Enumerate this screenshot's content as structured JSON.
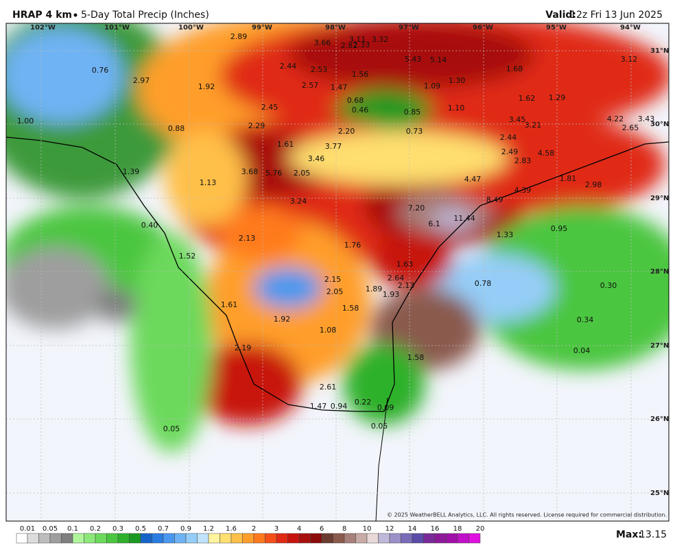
{
  "header": {
    "title": "HRAP 4 km",
    "subtitle": "5-Day Total Precip (Inches)",
    "valid_label": "Valid:",
    "valid_time": "12z Fri 13 Jun 2025"
  },
  "map": {
    "longitudes": [
      "102°W",
      "101°W",
      "100°W",
      "99°W",
      "98°W",
      "97°W",
      "96°W",
      "95°W",
      "94°W"
    ],
    "latitudes": [
      "31°N",
      "30°N",
      "29°N",
      "28°N",
      "27°N",
      "26°N",
      "25°N"
    ],
    "labels": [
      "2.89",
      "3.66",
      "2.82",
      "3.11",
      "2.33",
      "3.32",
      "0.76",
      "2.97",
      "1.92",
      "2.44",
      "2.53",
      "2.57",
      "1.47",
      "1.56",
      "5.43",
      "5.14",
      "1.68",
      "3.12",
      "1.09",
      "1.30",
      "1.62",
      "1.29",
      "0.68",
      "0.46",
      "0.85",
      "1.10",
      "2.45",
      "1.00",
      "0.88",
      "2.29",
      "2.20",
      "0.73",
      "3.45",
      "3.21",
      "4.22",
      "2.65",
      "3.43",
      "1.61",
      "3.77",
      "2.44",
      "3.46",
      "2.49",
      "4.58",
      "2.83",
      "1.39",
      "3.68",
      "5.76",
      "2.05",
      "1.13",
      "4.47",
      "1.81",
      "2.98",
      "4.39",
      "3.24",
      "8.49",
      "7.20",
      "11.44",
      "6.1",
      "0.40",
      "1.33",
      "0.95",
      "2.13",
      "1.76",
      "1.52",
      "1.63",
      "2.64",
      "2.15",
      "0.78",
      "0.30",
      "2.05",
      "1.89",
      "2.13",
      "1.93",
      "1.61",
      "1.58",
      "1.92",
      "0.34",
      "1.08",
      "2.19",
      "0.04",
      "1.58",
      "2.61",
      "0.22",
      "1.47",
      "0.94",
      "0.09",
      "0.05",
      "0.05"
    ],
    "copyright": "© 2025 WeatherBELL Analytics, LLC. All rights reserved. License required for commercial distribution."
  },
  "colorbar": {
    "ticks": [
      0.01,
      0.05,
      0.1,
      0.2,
      0.3,
      0.5,
      0.7,
      0.9,
      1.2,
      1.6,
      2,
      3,
      4,
      6,
      8,
      10,
      12,
      14,
      16,
      18,
      20
    ],
    "colors": [
      "#ffffff",
      "#dcdcdc",
      "#bdbdbd",
      "#9e9e9e",
      "#7f7f7f",
      "#aff59b",
      "#8de87a",
      "#6cd95c",
      "#4cc640",
      "#2fb12c",
      "#1a9a22",
      "#1764c8",
      "#2a7de0",
      "#4a98ee",
      "#6fb3f4",
      "#95cdf8",
      "#bfe4fb",
      "#fff3a0",
      "#ffdf70",
      "#ffc04a",
      "#ff9e2c",
      "#ff7a1e",
      "#f5501a",
      "#e02a14",
      "#c8140e",
      "#a8100e",
      "#8c0b0b",
      "#6b3c32",
      "#8a5a4e",
      "#a7807a",
      "#c8aaa6",
      "#e8d8d8",
      "#c0b8d8",
      "#9c90c8",
      "#7a6cb8",
      "#5a4ca8",
      "#7a2a98",
      "#8c1a98",
      "#a010a8",
      "#c010c8",
      "#e010e0"
    ]
  },
  "footer": {
    "max_label": "Max:",
    "max_value": "13.15"
  }
}
